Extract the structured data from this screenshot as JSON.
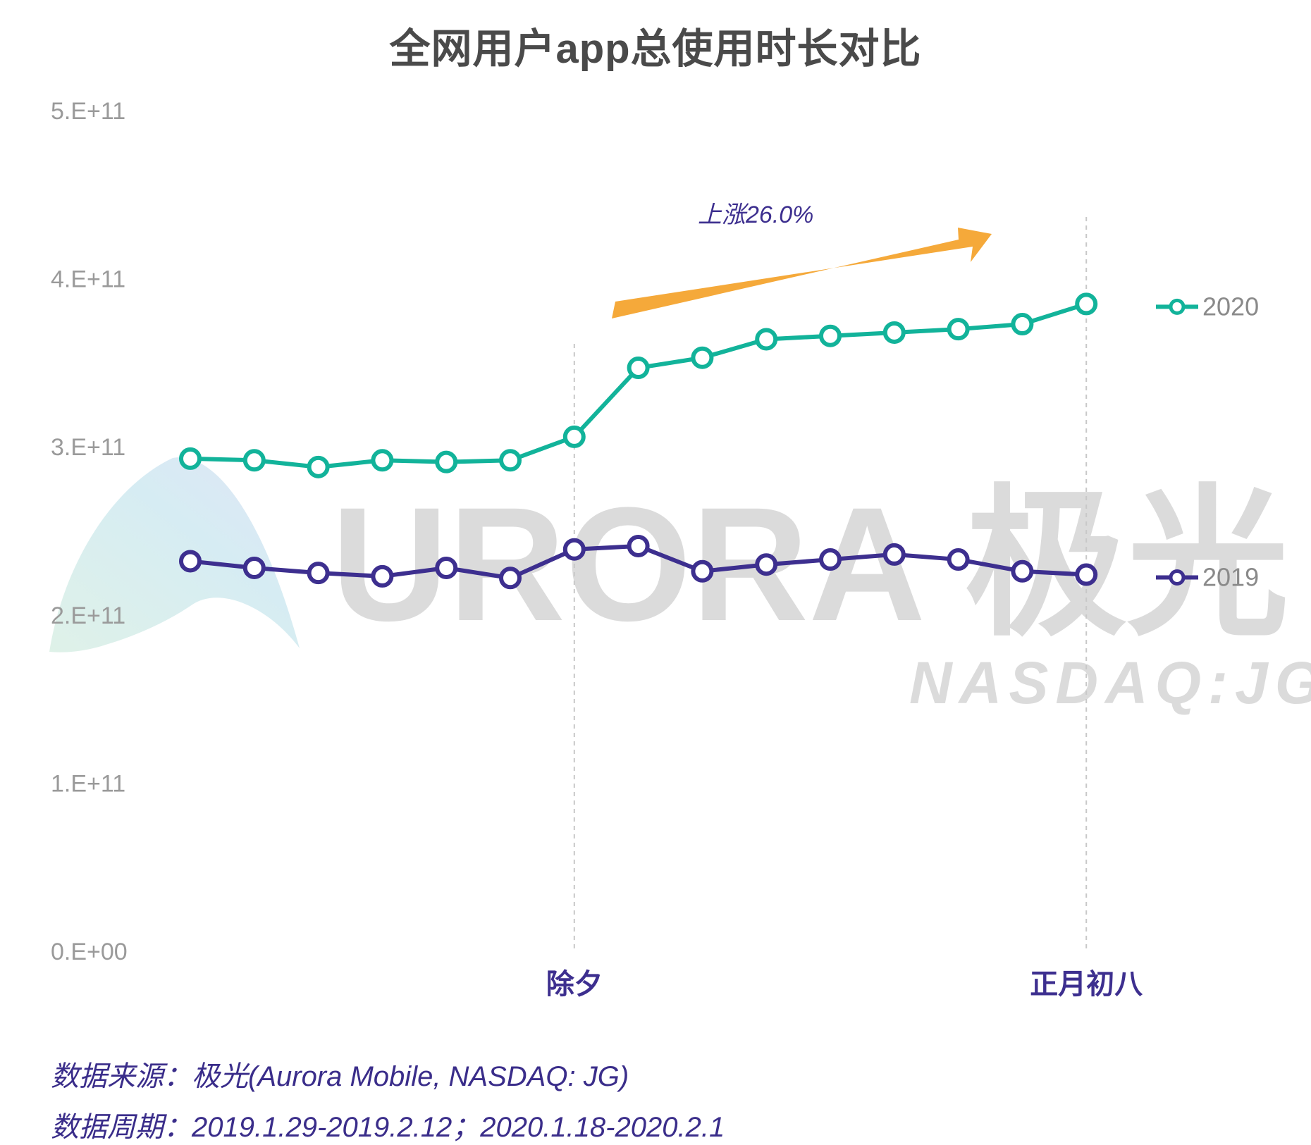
{
  "chart_data": {
    "type": "line",
    "title": "全网用户app总使用时长对比",
    "xlabel": "",
    "ylabel": "",
    "ylim": [
      0,
      500000000000
    ],
    "yticks": [
      {
        "value": 0,
        "label": "0.E+00"
      },
      {
        "value": 100000000000,
        "label": "1.E+11"
      },
      {
        "value": 200000000000,
        "label": "2.E+11"
      },
      {
        "value": 300000000000,
        "label": "3.E+11"
      },
      {
        "value": 400000000000,
        "label": "4.E+11"
      },
      {
        "value": 500000000000,
        "label": "5.E+11"
      }
    ],
    "x_count": 15,
    "x_labels": [
      {
        "index": 6,
        "label": "除夕"
      },
      {
        "index": 14,
        "label": "正月初八"
      }
    ],
    "series": [
      {
        "name": "2020",
        "color": "#12b39a",
        "values": [
          293000000000.0,
          292000000000.0,
          288000000000.0,
          292000000000.0,
          291000000000.0,
          292000000000.0,
          306000000000.0,
          347000000000.0,
          353000000000.0,
          364000000000.0,
          366000000000.0,
          368000000000.0,
          370000000000.0,
          373000000000.0,
          385000000000.0
        ]
      },
      {
        "name": "2019",
        "color": "#3d2f8f",
        "values": [
          232000000000.0,
          228000000000.0,
          225000000000.0,
          223000000000.0,
          228000000000.0,
          222000000000.0,
          239000000000.0,
          241000000000.0,
          226000000000.0,
          230000000000.0,
          233000000000.0,
          236000000000.0,
          233000000000.0,
          226000000000.0,
          224000000000.0
        ]
      }
    ],
    "annotation": {
      "text": "上涨26.0%",
      "arrow_color": "#f5a93a"
    },
    "grid": false,
    "legend_position": "right"
  },
  "watermark": {
    "brand": "URORA 极光",
    "ticker": "NASDAQ:JG"
  },
  "footer": {
    "source": "数据来源：极光(Aurora Mobile, NASDAQ: JG)",
    "period": "数据周期：2019.1.29-2019.2.12；2020.1.18-2020.2.1"
  }
}
